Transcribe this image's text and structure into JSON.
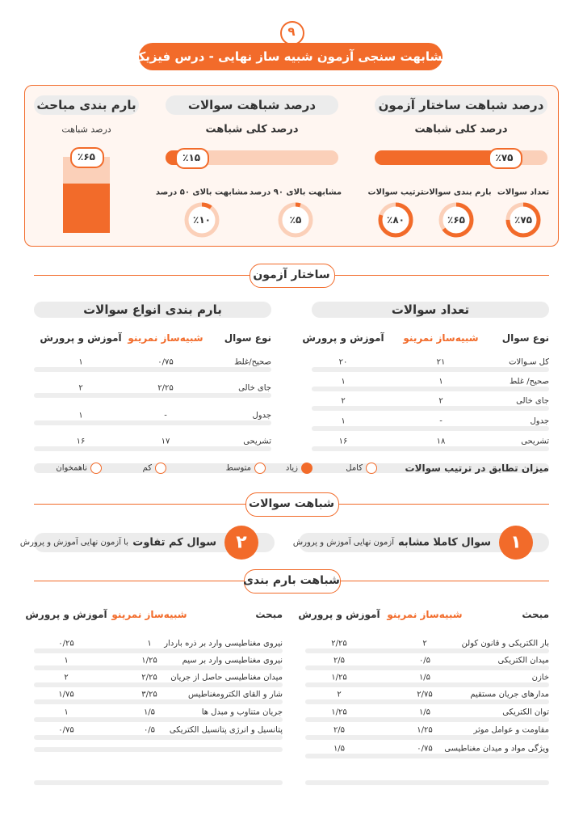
{
  "header": {
    "number": "۹",
    "title": "مشابهت سنجی آزمون شبیه ساز نهایی - درس فیزیک"
  },
  "summary": {
    "structure": {
      "title": "درصد شباهت ساختار آزمون",
      "subtitle": "درصد کلی شباهت",
      "overall": {
        "value": 75,
        "label": "٪۷۵"
      },
      "items": [
        {
          "name": "تعداد سوالات",
          "value": 75,
          "label": "٪۷۵"
        },
        {
          "name": "بارم بندی سوالات",
          "value": 65,
          "label": "٪۶۵"
        },
        {
          "name": "ترتیب سوالات",
          "value": 80,
          "label": "٪۸۰"
        }
      ]
    },
    "questions": {
      "title": "درصد شباهت سوالات",
      "subtitle": "درصد کلی شباهت",
      "overall": {
        "value": 15,
        "label": "٪۱۵"
      },
      "items": [
        {
          "name": "مشابهت بالای ۹۰ درصد",
          "value": 5,
          "label": "٪۵"
        },
        {
          "name": "مشابهت بالای ۵۰ درصد",
          "value": 10,
          "label": "٪۱۰"
        }
      ]
    },
    "topics": {
      "title": "بارم بندی مباحث",
      "subtitle": "درصد شباهت",
      "overall": {
        "value": 65,
        "label": "٪۶۵"
      }
    }
  },
  "structure_section": {
    "title": "ساختار آزمون",
    "count_table": {
      "title": "تعداد سوالات",
      "headers": [
        "نوع سوال",
        "شبیه‌ساز نمرینو",
        "آموزش و پرورش"
      ],
      "rows": [
        [
          "کل سـوالات",
          "۲۱",
          "۲۰"
        ],
        [
          "صحیح/ غلط",
          "۱",
          "۱"
        ],
        [
          "جای خالی",
          "۲",
          "۲"
        ],
        [
          "جدول",
          "-",
          "۱"
        ],
        [
          "تشریحی",
          "۱۸",
          "۱۶"
        ]
      ]
    },
    "score_table": {
      "title": "بارم بندی انواع سوالات",
      "headers": [
        "نوع سوال",
        "شبیه‌ساز نمرینو",
        "آموزش و پرورش"
      ],
      "rows": [
        [
          "صحیح/غلط",
          "۰/۷۵",
          "۱"
        ],
        [
          "جای خالی",
          "۲/۲۵",
          "۲"
        ],
        [
          "جدول",
          "-",
          "۱"
        ],
        [
          "تشریحی",
          "۱۷",
          "۱۶"
        ]
      ]
    },
    "order": {
      "label": "میزان تطابق در ترتیب سوالات",
      "options": [
        {
          "label": "کامل",
          "selected": false
        },
        {
          "label": "زیاد",
          "selected": true
        },
        {
          "label": "متوسط",
          "selected": false
        },
        {
          "label": "کم",
          "selected": false
        },
        {
          "label": "ناهمخوان",
          "selected": false
        }
      ]
    }
  },
  "similarity_section": {
    "title": "شباهت سوالات",
    "cards": [
      {
        "number": "۱",
        "bold": "سوال کاملا مشابه",
        "text": "آزمون نهایی آموزش و پرورش"
      },
      {
        "number": "۲",
        "bold": "سوال کم تفاوت",
        "text": "با آزمون نهایی آموزش و پرورش"
      }
    ]
  },
  "score_section": {
    "title": "شباهت بارم بندی",
    "right_table": {
      "headers": [
        "مبحث",
        "شبیه‌ساز نمرینو",
        "آموزش و پرورش"
      ],
      "rows": [
        [
          "بار الکتریکی و قانون کولن",
          "۲",
          "۲/۲۵"
        ],
        [
          "میدان الکتریکی",
          "۰/۵",
          "۲/۵"
        ],
        [
          "خازن",
          "۱/۵",
          "۱/۲۵"
        ],
        [
          "مدارهای جریان مستقیم",
          "۲/۷۵",
          "۲"
        ],
        [
          "توان الکتریکی",
          "۱/۵",
          "۱/۲۵"
        ],
        [
          "مقاومت و عوامل موثر",
          "۱/۲۵",
          "۲/۵"
        ],
        [
          "ویژگی مواد و میدان مغناطیسی",
          "۰/۷۵",
          "۱/۵"
        ]
      ]
    },
    "left_table": {
      "headers": [
        "مبحث",
        "شبیه‌ساز نمرینو",
        "آموزش و پرورش"
      ],
      "rows": [
        [
          "نیروی مغناطیسی وارد بر ذره باردار",
          "۱",
          "۰/۲۵"
        ],
        [
          "نیروی مغناطیسی وارد بر سیم",
          "۱/۲۵",
          "۱"
        ],
        [
          "میدان مغناطیسی حاصل از جریان",
          "۲/۲۵",
          "۲"
        ],
        [
          "شار و القای الکترومغناطیس",
          "۳/۲۵",
          "۱/۷۵"
        ],
        [
          "جریان متناوب و مبدل ها",
          "۱/۵",
          "۱"
        ],
        [
          "پتانسیل و انرژی پتانسیل الکتریکی",
          "۰/۵",
          "۰/۷۵"
        ]
      ]
    }
  }
}
